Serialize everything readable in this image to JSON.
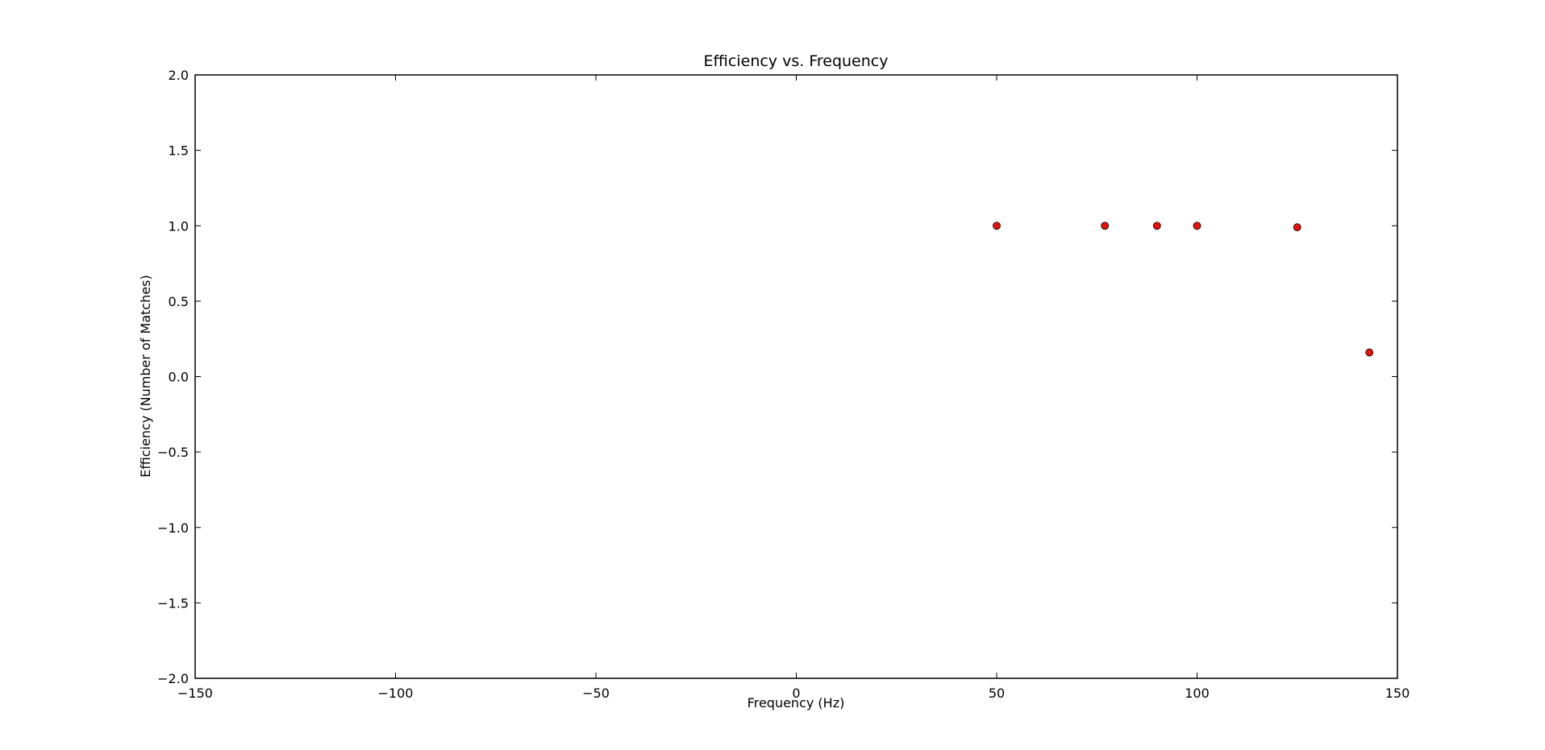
{
  "chart_data": {
    "type": "scatter",
    "title": "Efficiency vs. Frequency",
    "xlabel": "Frequency (Hz)",
    "ylabel": "Efficiency (Number of Matches)",
    "xlim": [
      -150,
      150
    ],
    "ylim": [
      -2.0,
      2.0
    ],
    "xticks": [
      -150,
      -100,
      -50,
      0,
      50,
      100,
      150
    ],
    "xtick_labels": [
      "−150",
      "−100",
      "−50",
      "0",
      "50",
      "100",
      "150"
    ],
    "yticks": [
      -2.0,
      -1.5,
      -1.0,
      -0.5,
      0.0,
      0.5,
      1.0,
      1.5,
      2.0
    ],
    "ytick_labels": [
      "−2.0",
      "−1.5",
      "−1.0",
      "−0.5",
      "0.0",
      "0.5",
      "1.0",
      "1.5",
      "2.0"
    ],
    "grid": false,
    "marker_color": "#e3120b",
    "marker_edge_color": "#000000",
    "points": [
      {
        "x": 50,
        "y": 1.0
      },
      {
        "x": 77,
        "y": 1.0
      },
      {
        "x": 90,
        "y": 1.0
      },
      {
        "x": 100,
        "y": 1.0
      },
      {
        "x": 125,
        "y": 0.99
      },
      {
        "x": 143,
        "y": 0.16
      }
    ]
  }
}
